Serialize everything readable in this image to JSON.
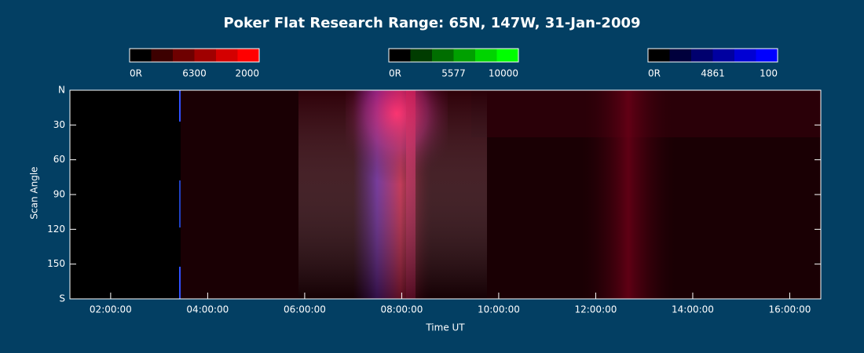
{
  "chart_data": {
    "type": "keogram",
    "title": "Poker Flat Research Range: 65N, 147W, 31-Jan-2009",
    "xlabel": "Time UT",
    "ylabel": "Scan Angle",
    "xlim": [
      1.16,
      16.64
    ],
    "xticks": [
      {
        "value": 2,
        "label": "02:00:00"
      },
      {
        "value": 4,
        "label": "04:00:00"
      },
      {
        "value": 6,
        "label": "06:00:00"
      },
      {
        "value": 8,
        "label": "08:00:00"
      },
      {
        "value": 10,
        "label": "10:00:00"
      },
      {
        "value": 12,
        "label": "12:00:00"
      },
      {
        "value": 14,
        "label": "14:00:00"
      },
      {
        "value": 16,
        "label": "16:00:00"
      }
    ],
    "ylim": [
      180,
      0
    ],
    "yticks": [
      {
        "value": 0,
        "label": "N"
      },
      30,
      60,
      90,
      120,
      150,
      {
        "value": 180,
        "label": "S"
      }
    ],
    "colorbars": [
      {
        "labels": [
          "0R",
          "6300",
          "2000"
        ],
        "colors": [
          "#000000",
          "#3c0000",
          "#6e0000",
          "#a00000",
          "#d40000",
          "#ff0000"
        ]
      },
      {
        "labels": [
          "0R",
          "5577",
          "10000"
        ],
        "colors": [
          "#000000",
          "#003c00",
          "#006e00",
          "#00a000",
          "#00d400",
          "#00ff00"
        ]
      },
      {
        "labels": [
          "0R",
          "4861",
          "100"
        ],
        "colors": [
          "#000000",
          "#00003c",
          "#00006e",
          "#0000a0",
          "#0000d4",
          "#0000ff"
        ]
      }
    ]
  }
}
